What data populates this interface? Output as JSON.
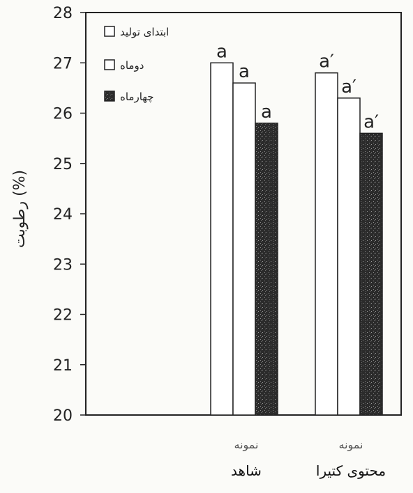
{
  "chart_data": {
    "type": "bar",
    "ylabel": "رطوبت (%)",
    "ylim": [
      20,
      28
    ],
    "yticks": [
      "20",
      "21",
      "22",
      "23",
      "24",
      "25",
      "26",
      "27",
      "28"
    ],
    "grid": false,
    "legend_position": "top-left",
    "categories": [
      {
        "top": "نمونه",
        "bottom": "شاهد"
      },
      {
        "top": "نمونه",
        "bottom": "محتوی کتیرا"
      }
    ],
    "series": [
      {
        "name": "ابتدای تولید",
        "fill": "#ffffff",
        "values": [
          27.0,
          26.8
        ],
        "labels": [
          "a",
          "a′"
        ]
      },
      {
        "name": "دوماه",
        "fill": "#ffffff",
        "values": [
          26.6,
          26.3
        ],
        "labels": [
          "a",
          "a′"
        ]
      },
      {
        "name": "چهارماه",
        "fill": "#2a2a2a",
        "values": [
          25.8,
          25.6
        ],
        "labels": [
          "a",
          "a′"
        ]
      }
    ]
  }
}
